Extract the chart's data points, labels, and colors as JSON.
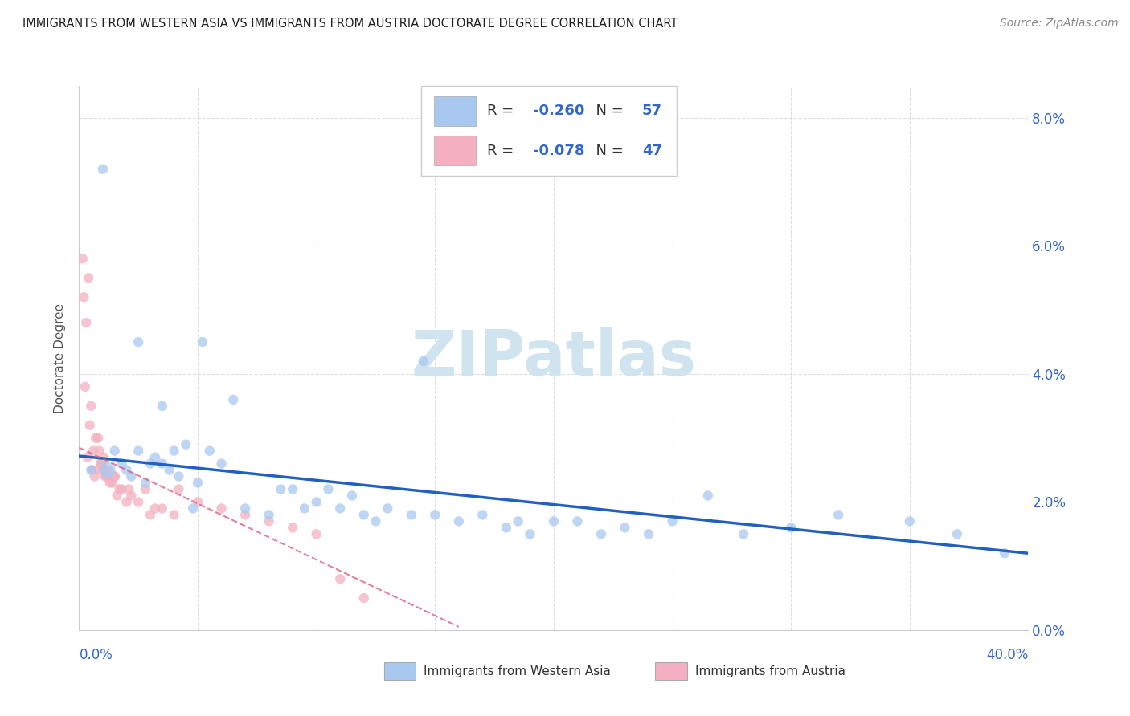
{
  "title": "IMMIGRANTS FROM WESTERN ASIA VS IMMIGRANTS FROM AUSTRIA DOCTORATE DEGREE CORRELATION CHART",
  "source": "Source: ZipAtlas.com",
  "ylabel": "Doctorate Degree",
  "legend_blue_label": "Immigrants from Western Asia",
  "legend_pink_label": "Immigrants from Austria",
  "R_blue": -0.26,
  "N_blue": 57,
  "R_pink": -0.078,
  "N_pink": 47,
  "blue_color": "#a8c8f0",
  "pink_color": "#f4b0c0",
  "blue_line_color": "#2060c0",
  "pink_line_color": "#e06080",
  "watermark_color": "#d8e8f0",
  "blue_x": [
    0.5,
    1.0,
    1.5,
    1.8,
    2.0,
    2.2,
    2.5,
    2.5,
    2.8,
    3.0,
    3.2,
    3.5,
    3.8,
    4.0,
    4.2,
    4.5,
    4.8,
    5.0,
    5.2,
    5.5,
    6.0,
    6.5,
    7.0,
    8.0,
    9.0,
    9.5,
    10.0,
    10.5,
    11.0,
    11.5,
    12.0,
    12.5,
    13.0,
    14.0,
    14.5,
    15.0,
    16.0,
    17.0,
    18.0,
    18.5,
    19.0,
    20.0,
    21.0,
    22.0,
    23.0,
    24.0,
    25.0,
    26.5,
    28.0,
    30.0,
    32.0,
    35.0,
    37.0,
    39.0,
    1.2,
    3.5,
    8.5
  ],
  "blue_y": [
    2.5,
    7.2,
    2.8,
    2.6,
    2.5,
    2.4,
    2.8,
    4.5,
    2.3,
    2.6,
    2.7,
    3.5,
    2.5,
    2.8,
    2.4,
    2.9,
    1.9,
    2.3,
    4.5,
    2.8,
    2.6,
    3.6,
    1.9,
    1.8,
    2.2,
    1.9,
    2.0,
    2.2,
    1.9,
    2.1,
    1.8,
    1.7,
    1.9,
    1.8,
    4.2,
    1.8,
    1.7,
    1.8,
    1.6,
    1.7,
    1.5,
    1.7,
    1.7,
    1.5,
    1.6,
    1.5,
    1.7,
    2.1,
    1.5,
    1.6,
    1.8,
    1.7,
    1.5,
    1.2,
    2.5,
    2.6,
    2.2
  ],
  "blue_sizes": [
    80,
    80,
    80,
    80,
    80,
    80,
    80,
    80,
    80,
    80,
    80,
    80,
    80,
    80,
    80,
    80,
    80,
    80,
    80,
    80,
    80,
    80,
    80,
    80,
    80,
    80,
    80,
    80,
    80,
    80,
    80,
    80,
    80,
    80,
    80,
    80,
    80,
    80,
    80,
    80,
    80,
    80,
    80,
    80,
    80,
    80,
    80,
    80,
    80,
    80,
    80,
    80,
    80,
    80,
    200,
    80,
    80
  ],
  "pink_x": [
    0.2,
    0.3,
    0.4,
    0.5,
    0.6,
    0.7,
    0.8,
    0.9,
    1.0,
    1.1,
    1.2,
    1.3,
    1.4,
    1.5,
    1.6,
    1.7,
    1.8,
    2.0,
    2.2,
    2.5,
    2.8,
    3.0,
    3.5,
    4.0,
    5.0,
    6.0,
    7.0,
    8.0,
    9.0,
    10.0,
    11.0,
    12.0,
    0.35,
    0.55,
    0.65,
    0.75,
    0.85,
    0.95,
    1.15,
    1.5,
    2.1,
    3.2,
    4.2,
    0.25,
    0.45,
    1.05,
    0.15
  ],
  "pink_y": [
    5.2,
    4.8,
    5.5,
    3.5,
    2.8,
    3.0,
    3.0,
    2.6,
    2.5,
    2.4,
    2.5,
    2.3,
    2.3,
    2.4,
    2.1,
    2.2,
    2.2,
    2.0,
    2.1,
    2.0,
    2.2,
    1.8,
    1.9,
    1.8,
    2.0,
    1.9,
    1.8,
    1.7,
    1.6,
    1.5,
    0.8,
    0.5,
    2.7,
    2.5,
    2.4,
    2.5,
    2.8,
    2.6,
    2.4,
    2.4,
    2.2,
    1.9,
    2.2,
    3.8,
    3.2,
    2.7,
    5.8
  ],
  "pink_sizes": [
    80,
    80,
    80,
    80,
    80,
    80,
    80,
    80,
    80,
    80,
    80,
    80,
    80,
    80,
    80,
    80,
    80,
    80,
    80,
    80,
    80,
    80,
    80,
    80,
    80,
    80,
    80,
    80,
    80,
    80,
    80,
    80,
    80,
    80,
    80,
    80,
    80,
    80,
    80,
    80,
    80,
    80,
    80,
    80,
    80,
    80,
    80
  ],
  "xmin": 0.0,
  "xmax": 40.0,
  "ymin": 0.0,
  "ymax": 8.5,
  "yticks": [
    0.0,
    2.0,
    4.0,
    6.0,
    8.0
  ],
  "xticks": [
    0,
    5,
    10,
    15,
    20,
    25,
    30,
    35,
    40
  ],
  "blue_trend_x0": 0.0,
  "blue_trend_y0": 2.72,
  "blue_trend_x1": 40.0,
  "blue_trend_y1": 1.2,
  "pink_trend_x0": 0.0,
  "pink_trend_y0": 2.85,
  "pink_trend_x1": 16.0,
  "pink_trend_y1": 0.05
}
